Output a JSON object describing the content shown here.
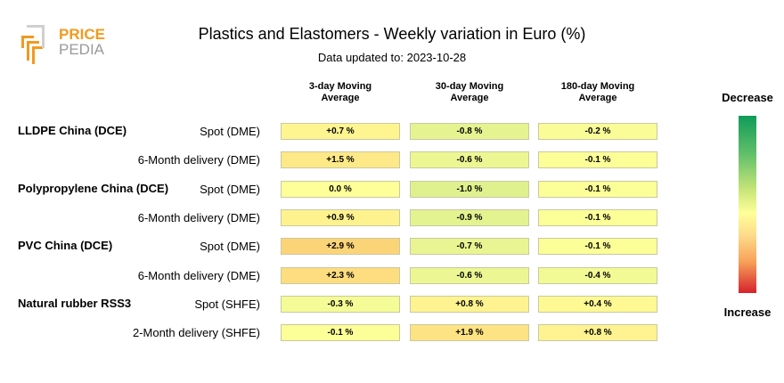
{
  "header": {
    "title": "Plastics and Elastomers - Weekly variation in Euro (%)",
    "subtitle": "Data updated to: 2023-10-28",
    "logo_top": "PRICE",
    "logo_bottom": "PEDIA"
  },
  "columns": [
    "3-day Moving\nAverage",
    "30-day Moving\nAverage",
    "180-day Moving\nAverage"
  ],
  "legend": {
    "top": "Decrease",
    "bottom": "Increase"
  },
  "chart_data": {
    "type": "table",
    "groups": [
      {
        "name": "LLDPE China (DCE)",
        "rows": [
          {
            "label": "Spot (DME)",
            "values": [
              "+0.7 %",
              "-0.8 %",
              "-0.2 %"
            ]
          },
          {
            "label": "6-Month delivery (DME)",
            "values": [
              "+1.5 %",
              "-0.6 %",
              "-0.1 %"
            ]
          }
        ]
      },
      {
        "name": "Polypropylene China (DCE)",
        "rows": [
          {
            "label": "Spot (DME)",
            "values": [
              "0.0 %",
              "-1.0 %",
              "-0.1 %"
            ]
          },
          {
            "label": "6-Month delivery (DME)",
            "values": [
              "+0.9 %",
              "-0.9 %",
              "-0.1 %"
            ]
          }
        ]
      },
      {
        "name": "PVC China (DCE)",
        "rows": [
          {
            "label": "Spot (DME)",
            "values": [
              "+2.9 %",
              "-0.7 %",
              "-0.1 %"
            ]
          },
          {
            "label": "6-Month delivery (DME)",
            "values": [
              "+2.3 %",
              "-0.6 %",
              "-0.4 %"
            ]
          }
        ]
      },
      {
        "name": "Natural rubber RSS3",
        "rows": [
          {
            "label": "Spot (SHFE)",
            "values": [
              "-0.3 %",
              "+0.8 %",
              "+0.4 %"
            ]
          },
          {
            "label": "2-Month delivery (SHFE)",
            "values": [
              "-0.1 %",
              "+1.9 %",
              "+0.8 %"
            ]
          }
        ]
      }
    ],
    "color_scale": {
      "decrease": "#0f9b59",
      "neutral": "#ffff99",
      "increase": "#d6222c"
    }
  }
}
